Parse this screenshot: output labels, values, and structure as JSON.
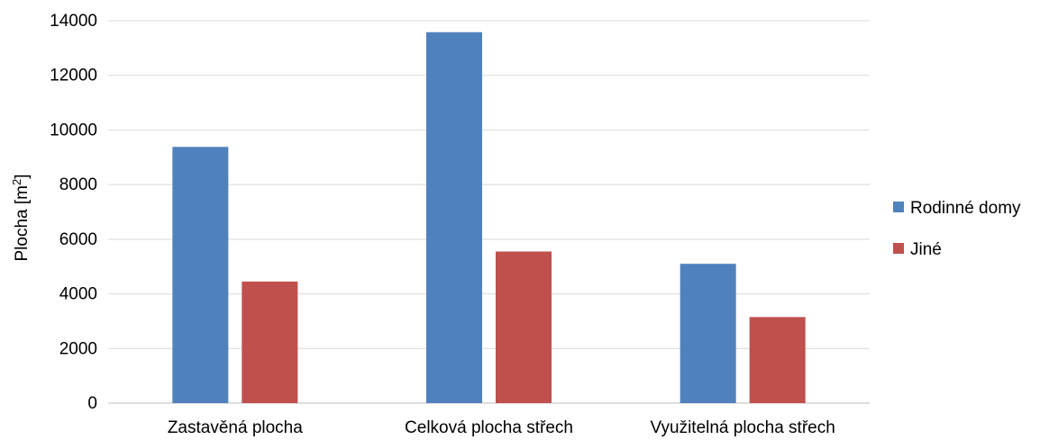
{
  "chart_data": {
    "type": "bar",
    "categories": [
      "Zastavěná plocha",
      "Celková plocha střech",
      "Využitelná plocha střech"
    ],
    "series": [
      {
        "name": "Rodinné domy",
        "values": [
          9380,
          13580,
          5100
        ],
        "color": "#4f81bd"
      },
      {
        "name": "Jiné",
        "values": [
          4450,
          5550,
          3150
        ],
        "color": "#c0504d"
      }
    ],
    "ylabel": "Plocha [m",
    "ylabel_superscript": "2",
    "ylabel_suffix": "]",
    "xlabel": "",
    "ylim": [
      0,
      14000
    ],
    "yticks": [
      0,
      2000,
      4000,
      6000,
      8000,
      10000,
      12000,
      14000
    ],
    "grid": true,
    "legend_position": "right"
  }
}
